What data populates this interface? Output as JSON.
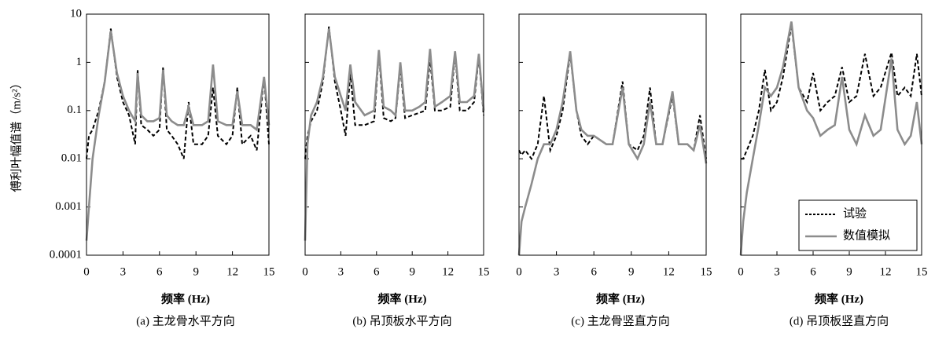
{
  "chart_data": [
    {
      "type": "line",
      "title": "(a) 主龙骨水平方向",
      "xlabel": "频率 (Hz)",
      "ylabel": "傅利叶幅值谱（m/s²）",
      "yscale": "log",
      "x": [
        0,
        0.2,
        0.5,
        1,
        1.5,
        2,
        2.5,
        3,
        3.5,
        4,
        4.2,
        4.5,
        5,
        5.5,
        6,
        6.3,
        6.6,
        7,
        7.5,
        8,
        8.4,
        8.8,
        9.5,
        10,
        10.4,
        10.8,
        11.5,
        12,
        12.4,
        12.8,
        13.5,
        14,
        14.6,
        15
      ],
      "series": [
        {
          "color": "#000000",
          "dash": true,
          "values": [
            0.01,
            0.03,
            0.04,
            0.1,
            0.4,
            5,
            0.5,
            0.15,
            0.08,
            0.02,
            0.7,
            0.05,
            0.04,
            0.03,
            0.04,
            0.8,
            0.04,
            0.03,
            0.02,
            0.01,
            0.15,
            0.02,
            0.02,
            0.03,
            0.3,
            0.03,
            0.02,
            0.03,
            0.3,
            0.02,
            0.03,
            0.015,
            0.5,
            0.02
          ]
        },
        {
          "color": "#8c8c8c",
          "dash": false,
          "values": [
            0.0002,
            0.001,
            0.01,
            0.08,
            0.4,
            4.5,
            0.6,
            0.2,
            0.1,
            0.06,
            0.6,
            0.08,
            0.06,
            0.06,
            0.07,
            0.7,
            0.08,
            0.06,
            0.05,
            0.05,
            0.12,
            0.05,
            0.05,
            0.06,
            0.9,
            0.06,
            0.05,
            0.05,
            0.25,
            0.05,
            0.05,
            0.04,
            0.5,
            0.05
          ]
        }
      ],
      "xlim": [
        0,
        15
      ],
      "xticks": [
        0,
        3,
        6,
        9,
        12,
        15
      ],
      "ylim": [
        0.0001,
        10
      ],
      "yticks": [
        0.0001,
        0.001,
        0.01,
        0.1,
        1,
        10
      ]
    },
    {
      "type": "line",
      "title": "(b) 吊顶板水平方向",
      "xlabel": "频率 (Hz)",
      "yscale": "log",
      "x": [
        0,
        0.2,
        0.5,
        1,
        1.5,
        2,
        2.5,
        3,
        3.4,
        3.8,
        4.2,
        5,
        5.8,
        6.2,
        6.6,
        7.2,
        7.6,
        8,
        8.4,
        9,
        9.6,
        10.1,
        10.5,
        10.9,
        11.5,
        12.2,
        12.6,
        13,
        13.6,
        14.2,
        14.6,
        15
      ],
      "series": [
        {
          "color": "#000000",
          "dash": true,
          "values": [
            0.01,
            0.03,
            0.06,
            0.1,
            0.4,
            5.5,
            0.4,
            0.1,
            0.03,
            0.6,
            0.05,
            0.05,
            0.06,
            1.6,
            0.07,
            0.06,
            0.07,
            0.8,
            0.07,
            0.08,
            0.09,
            0.1,
            1.2,
            0.1,
            0.1,
            0.12,
            1.5,
            0.1,
            0.1,
            0.15,
            1.3,
            0.08
          ]
        },
        {
          "color": "#8c8c8c",
          "dash": false,
          "values": [
            0.0002,
            0.02,
            0.08,
            0.15,
            0.5,
            5,
            0.5,
            0.2,
            0.1,
            0.9,
            0.15,
            0.08,
            0.1,
            1.8,
            0.12,
            0.1,
            0.08,
            1,
            0.1,
            0.1,
            0.12,
            0.15,
            1.9,
            0.12,
            0.15,
            0.2,
            1.7,
            0.15,
            0.15,
            0.2,
            1.5,
            0.1
          ]
        }
      ],
      "xlim": [
        0,
        15
      ],
      "xticks": [
        0,
        3,
        6,
        9,
        12,
        15
      ],
      "ylim": [
        0.0001,
        10
      ],
      "yticks": [
        0.0001,
        0.001,
        0.01,
        0.1,
        1,
        10
      ]
    },
    {
      "type": "line",
      "title": "(c) 主龙骨竖直方向",
      "xlabel": "频率 (Hz)",
      "yscale": "log",
      "x": [
        0,
        0.2,
        0.5,
        1,
        1.5,
        2,
        2.5,
        3,
        3.5,
        4.1,
        4.6,
        5,
        5.5,
        6,
        7,
        7.5,
        8.3,
        8.8,
        9.5,
        10,
        10.5,
        11,
        11.5,
        12.3,
        12.8,
        13.5,
        14,
        14.5,
        15
      ],
      "series": [
        {
          "color": "#000000",
          "dash": true,
          "values": [
            0.015,
            0.012,
            0.015,
            0.01,
            0.02,
            0.2,
            0.015,
            0.03,
            0.1,
            1.5,
            0.1,
            0.03,
            0.02,
            0.03,
            0.02,
            0.02,
            0.4,
            0.02,
            0.015,
            0.03,
            0.3,
            0.02,
            0.02,
            0.2,
            0.02,
            0.02,
            0.015,
            0.08,
            0.01
          ]
        },
        {
          "color": "#8c8c8c",
          "dash": false,
          "values": [
            0.0001,
            0.0005,
            0.001,
            0.003,
            0.01,
            0.02,
            0.02,
            0.04,
            0.15,
            1.7,
            0.1,
            0.04,
            0.03,
            0.03,
            0.02,
            0.02,
            0.3,
            0.02,
            0.01,
            0.02,
            0.15,
            0.02,
            0.02,
            0.25,
            0.02,
            0.02,
            0.015,
            0.05,
            0.008
          ]
        }
      ],
      "xlim": [
        0,
        15
      ],
      "xticks": [
        0,
        3,
        6,
        9,
        12,
        15
      ],
      "ylim": [
        0.0001,
        10
      ],
      "yticks": [
        0.0001,
        0.001,
        0.01,
        0.1,
        1,
        10
      ]
    },
    {
      "type": "line",
      "title": "(d) 吊顶板竖直方向",
      "xlabel": "频率 (Hz)",
      "yscale": "log",
      "legend": "lower right",
      "x": [
        0,
        0.2,
        0.5,
        1,
        1.5,
        2,
        2.5,
        3,
        3.5,
        4.2,
        4.8,
        5.5,
        6,
        6.6,
        7.2,
        7.8,
        8.4,
        9,
        9.6,
        10.3,
        11,
        11.6,
        12.5,
        13,
        13.6,
        14.1,
        14.6,
        15
      ],
      "series": [
        {
          "name": "试验",
          "color": "#000000",
          "dash": true,
          "values": [
            0.01,
            0.01,
            0.015,
            0.03,
            0.1,
            0.7,
            0.1,
            0.15,
            0.5,
            6,
            0.3,
            0.15,
            0.6,
            0.1,
            0.15,
            0.2,
            0.8,
            0.15,
            0.2,
            1.5,
            0.2,
            0.3,
            1.6,
            0.2,
            0.3,
            0.2,
            1.5,
            0.2
          ]
        },
        {
          "name": "数值模拟",
          "color": "#8c8c8c",
          "dash": false,
          "values": [
            0.0001,
            0.0005,
            0.002,
            0.01,
            0.05,
            0.3,
            0.2,
            0.3,
            0.8,
            7,
            0.3,
            0.1,
            0.07,
            0.03,
            0.04,
            0.05,
            0.5,
            0.04,
            0.02,
            0.08,
            0.03,
            0.04,
            1.2,
            0.04,
            0.02,
            0.03,
            0.15,
            0.02
          ]
        }
      ],
      "xlim": [
        0,
        15
      ],
      "xticks": [
        0,
        3,
        6,
        9,
        12,
        15
      ],
      "ylim": [
        0.0001,
        10
      ],
      "yticks": [
        0.0001,
        0.001,
        0.01,
        0.1,
        1,
        10
      ]
    }
  ]
}
